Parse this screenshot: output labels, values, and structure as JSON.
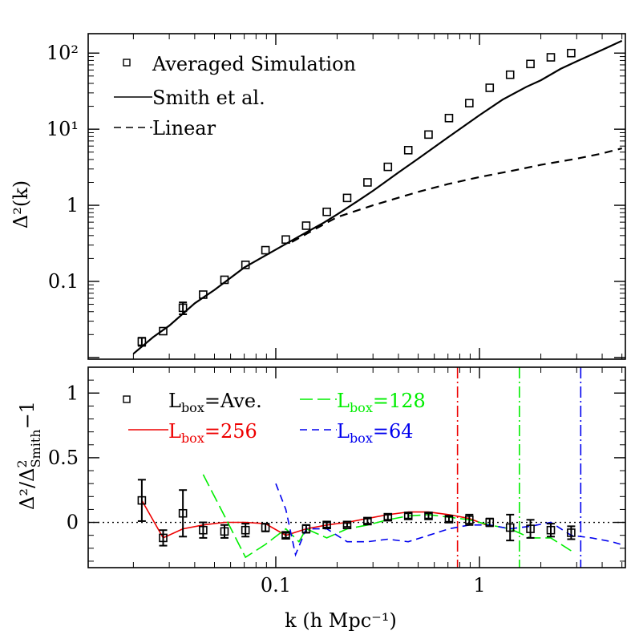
{
  "chart_data": [
    {
      "type": "line",
      "panel": "upper",
      "xscale": "log",
      "yscale": "log",
      "xlim": [
        0.012,
        5.2
      ],
      "ylim": [
        0.0095,
        180
      ],
      "ylabel": "Δ²(k)",
      "y_ticks": [
        {
          "value": 0.1,
          "label": "0.1"
        },
        {
          "value": 1,
          "label": "1"
        },
        {
          "value": 10,
          "label": "10¹"
        },
        {
          "value": 100,
          "label": "10²"
        }
      ],
      "legend_position": "top-left",
      "legend": {
        "simulation": "Averaged Simulation",
        "smith": "Smith et al.",
        "linear": "Linear"
      },
      "series": [
        {
          "name": "Averaged Simulation",
          "style": "open-square-markers",
          "x": [
            0.022,
            0.028,
            0.035,
            0.044,
            0.056,
            0.071,
            0.089,
            0.112,
            0.141,
            0.178,
            0.224,
            0.282,
            0.355,
            0.447,
            0.562,
            0.708,
            0.891,
            1.122,
            1.413,
            1.778,
            2.239,
            2.818
          ],
          "y": [
            0.0162,
            0.0222,
            0.045,
            0.067,
            0.105,
            0.165,
            0.257,
            0.355,
            0.54,
            0.82,
            1.25,
            2.0,
            3.2,
            5.3,
            8.5,
            14,
            22,
            35,
            52,
            72,
            88,
            100
          ],
          "yerr": [
            0.002,
            0.002,
            0.008,
            0.005,
            0.006,
            0.01,
            0.012,
            0.015,
            0.02,
            0.03,
            0.04,
            0.06,
            0.1,
            0.15,
            0.25,
            0.4,
            0.6,
            1,
            1.5,
            2,
            3,
            4
          ]
        },
        {
          "name": "Smith et al.",
          "style": "solid",
          "x": [
            0.02,
            0.025,
            0.03,
            0.04,
            0.05,
            0.07,
            0.1,
            0.13,
            0.17,
            0.2,
            0.25,
            0.3,
            0.4,
            0.5,
            0.7,
            1,
            1.3,
            1.7,
            2,
            2.5,
            3,
            4,
            5
          ],
          "y": [
            0.0112,
            0.0185,
            0.0262,
            0.0515,
            0.0772,
            0.152,
            0.262,
            0.39,
            0.58,
            0.76,
            1.12,
            1.55,
            2.7,
            4.1,
            7.8,
            15.3,
            24.5,
            36,
            44,
            62,
            78,
            110,
            145
          ]
        },
        {
          "name": "Linear",
          "style": "dashed",
          "x": [
            0.12,
            0.15,
            0.2,
            0.3,
            0.5,
            0.7,
            1,
            1.5,
            2,
            3,
            4,
            5
          ],
          "y": [
            0.33,
            0.46,
            0.7,
            1.0,
            1.5,
            1.9,
            2.35,
            2.9,
            3.4,
            4.1,
            4.8,
            5.6
          ]
        }
      ]
    },
    {
      "type": "line",
      "panel": "lower",
      "xscale": "log",
      "xlim": [
        0.012,
        5.2
      ],
      "ylim": [
        -0.35,
        1.2
      ],
      "xlabel": "k (h Mpc⁻¹)",
      "ylabel": "Δ²/Δ²Smith−1",
      "ylabel_parts": {
        "main": "Δ²/Δ",
        "sup": "2",
        "sub": "Smith",
        "tail": "−1"
      },
      "x_ticks": [
        {
          "value": 0.1,
          "label": "0.1"
        },
        {
          "value": 1,
          "label": "1"
        }
      ],
      "y_ticks": [
        {
          "value": 0,
          "label": "0"
        },
        {
          "value": 0.5,
          "label": "0.5"
        },
        {
          "value": 1,
          "label": "1"
        }
      ],
      "legend": [
        {
          "base": "L",
          "sub": "box",
          "rest": "=Ave.",
          "color": "#000000"
        },
        {
          "base": "L",
          "sub": "box",
          "rest": "=128",
          "color": "#00ee00"
        },
        {
          "base": "L",
          "sub": "box",
          "rest": "=256",
          "color": "#ee0000"
        },
        {
          "base": "L",
          "sub": "box",
          "rest": "=64",
          "color": "#0000ee"
        }
      ],
      "vertical_lines": [
        {
          "x": 0.78,
          "color": "#ee0000",
          "style": "dash-dot"
        },
        {
          "x": 1.57,
          "color": "#00ee00",
          "style": "dash-dot"
        },
        {
          "x": 3.14,
          "color": "#0000ee",
          "style": "dash-dot"
        }
      ],
      "series": [
        {
          "name": "Lbox=Ave.",
          "color": "#000000",
          "style": "open-square-markers",
          "x": [
            0.022,
            0.028,
            0.035,
            0.044,
            0.056,
            0.071,
            0.089,
            0.112,
            0.141,
            0.178,
            0.224,
            0.282,
            0.355,
            0.447,
            0.562,
            0.708,
            0.891,
            1.122,
            1.413,
            1.778,
            2.239,
            2.818
          ],
          "y": [
            0.17,
            -0.12,
            0.07,
            -0.06,
            -0.07,
            -0.06,
            -0.04,
            -0.1,
            -0.05,
            -0.02,
            -0.02,
            0.01,
            0.04,
            0.05,
            0.05,
            0.025,
            0.02,
            0.0,
            -0.04,
            -0.05,
            -0.06,
            -0.08
          ],
          "yerr": [
            0.16,
            0.06,
            0.18,
            0.06,
            0.05,
            0.05,
            0.03,
            0.02,
            0.03,
            0.02,
            0.015,
            0.02,
            0.02,
            0.02,
            0.02,
            0.02,
            0.04,
            0.03,
            0.1,
            0.07,
            0.05,
            0.05
          ]
        },
        {
          "name": "Lbox=256",
          "color": "#ee0000",
          "style": "solid",
          "x": [
            0.022,
            0.028,
            0.035,
            0.044,
            0.056,
            0.071,
            0.089,
            0.112,
            0.141,
            0.178,
            0.224,
            0.282,
            0.355,
            0.447,
            0.562,
            0.708,
            0.891,
            1.122
          ],
          "y": [
            0.17,
            -0.12,
            -0.05,
            -0.02,
            0.0,
            0.0,
            -0.01,
            -0.1,
            -0.05,
            -0.02,
            0.0,
            0.03,
            0.06,
            0.08,
            0.08,
            0.06,
            0.03,
            -0.03
          ]
        },
        {
          "name": "Lbox=128",
          "color": "#00ee00",
          "style": "long-dashed",
          "x": [
            0.044,
            0.056,
            0.071,
            0.089,
            0.112,
            0.13,
            0.141,
            0.178,
            0.224,
            0.282,
            0.355,
            0.447,
            0.562,
            0.708,
            0.891,
            1.122,
            1.413,
            1.778,
            2.239,
            2.818
          ],
          "y": [
            0.37,
            0.05,
            -0.27,
            -0.17,
            -0.05,
            -0.15,
            -0.05,
            -0.12,
            -0.05,
            -0.02,
            0.02,
            0.05,
            0.06,
            0.04,
            0.02,
            -0.02,
            -0.05,
            -0.12,
            -0.12,
            -0.22
          ]
        },
        {
          "name": "Lbox=64",
          "color": "#0000ee",
          "style": "dashed",
          "x": [
            0.1,
            0.112,
            0.125,
            0.141,
            0.178,
            0.224,
            0.282,
            0.355,
            0.447,
            0.562,
            0.708,
            0.891,
            1.122,
            1.413,
            1.778,
            2.239,
            2.818,
            3.548,
            4.467,
            5.2
          ],
          "y": [
            0.3,
            0.1,
            -0.25,
            -0.05,
            -0.05,
            -0.15,
            -0.15,
            -0.13,
            -0.15,
            -0.1,
            -0.05,
            -0.02,
            -0.02,
            -0.05,
            -0.03,
            0.0,
            -0.1,
            -0.12,
            -0.15,
            -0.18
          ]
        }
      ]
    }
  ]
}
